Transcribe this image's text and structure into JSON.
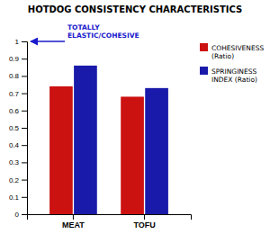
{
  "chart_data": {
    "type": "bar",
    "title": "HOTDOG CONSISTENCY CHARACTERISTICS",
    "categories": [
      "MEAT",
      "TOFU"
    ],
    "series": [
      {
        "name": "COHESIVENESS\n(Ratio)",
        "color": "#cc1111",
        "values": [
          0.74,
          0.68
        ]
      },
      {
        "name": "SPRINGINESS\nINDEX (Ratio)",
        "color": "#1a1aaa",
        "values": [
          0.86,
          0.73
        ]
      }
    ],
    "ylim": [
      0,
      1.0
    ],
    "yticks": [
      0,
      0.1,
      0.2,
      0.3,
      0.4,
      0.5,
      0.6,
      0.7,
      0.8,
      0.9,
      1
    ],
    "annotations": [
      {
        "text": "TOTALLY\nELASTIC/COHESIVE",
        "color": "#1a1acc"
      }
    ],
    "legend": "upper right",
    "grid": false
  }
}
